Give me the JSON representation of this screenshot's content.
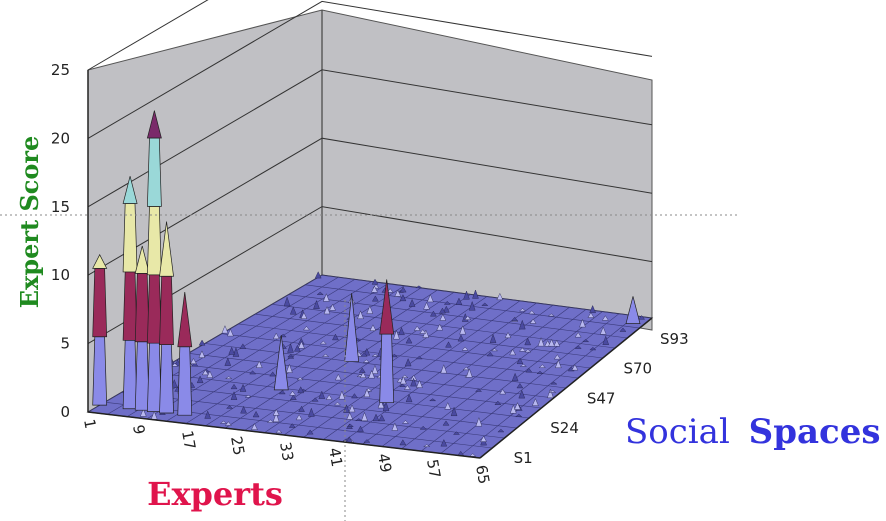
{
  "chart_data": {
    "type": "3d-surface",
    "y_axis": {
      "label": "Expert Score",
      "ticks": [
        "0",
        "5",
        "10",
        "15",
        "20",
        "25"
      ],
      "range": [
        0,
        25
      ],
      "color": "#1f8a1f"
    },
    "x_axis": {
      "label": "Experts",
      "ticks": [
        "1",
        "9",
        "17",
        "25",
        "33",
        "41",
        "49",
        "57",
        "65"
      ],
      "color": "#e0144c"
    },
    "z_axis": {
      "label_part1": "Social",
      "label_part2": "Spaces",
      "ticks": [
        "S1",
        "S24",
        "S47",
        "S70",
        "S93"
      ],
      "color": "#3333dd"
    },
    "grid": true,
    "peaks": [
      {
        "expert": 1,
        "space": "S1",
        "value": 11
      },
      {
        "expert": 6,
        "space": "S1",
        "value": 17
      },
      {
        "expert": 8,
        "space": "S1",
        "value": 12
      },
      {
        "expert": 10,
        "space": "S1",
        "value": 22
      },
      {
        "expert": 12,
        "space": "S1",
        "value": 14
      },
      {
        "expert": 15,
        "space": "S1",
        "value": 9
      },
      {
        "expert": 23,
        "space": "S24",
        "value": 4
      },
      {
        "expert": 41,
        "space": "S24",
        "value": 9
      },
      {
        "expert": 27,
        "space": "S47",
        "value": 5
      },
      {
        "expert": 63,
        "space": "S93",
        "value": 2
      }
    ],
    "band_colors": [
      "#8a8ae8",
      "#9a2a5a",
      "#e8e8a8",
      "#9ad8d8",
      "#7a2a6a"
    ]
  }
}
